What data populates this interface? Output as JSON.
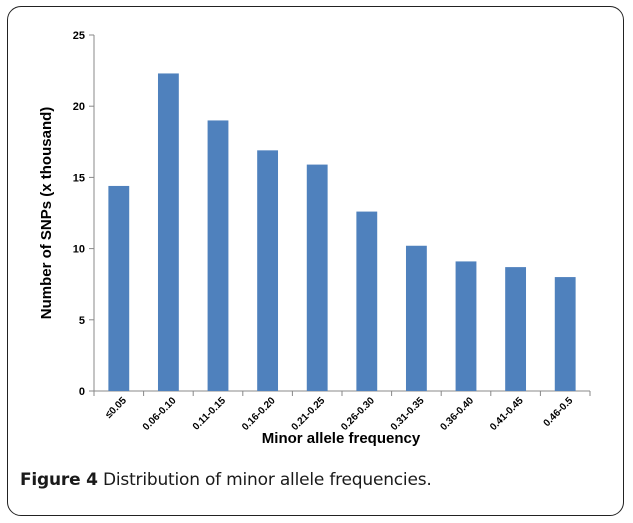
{
  "caption": {
    "figure_label": "Figure 4",
    "text": "Distribution of minor allele frequencies."
  },
  "chart_data": {
    "type": "bar",
    "categories": [
      "≤0.05",
      "0.06-0.10",
      "0.11-0.15",
      "0.16-0.20",
      "0.21-0.25",
      "0.26-0.30",
      "0.31-0.35",
      "0.36-0.40",
      "0.41-0.45",
      "0.46-0.5"
    ],
    "values": [
      14.4,
      22.3,
      19.0,
      16.9,
      15.9,
      12.6,
      10.2,
      9.1,
      8.7,
      8.0
    ],
    "xlabel": "Minor allele frequency",
    "ylabel": "Number of SNPs (x thousand)",
    "ylim": [
      0,
      25
    ],
    "yticks": [
      "0",
      "5",
      "10",
      "15",
      "20",
      "25"
    ],
    "grid": false,
    "bar_color": "#4f81bd"
  }
}
